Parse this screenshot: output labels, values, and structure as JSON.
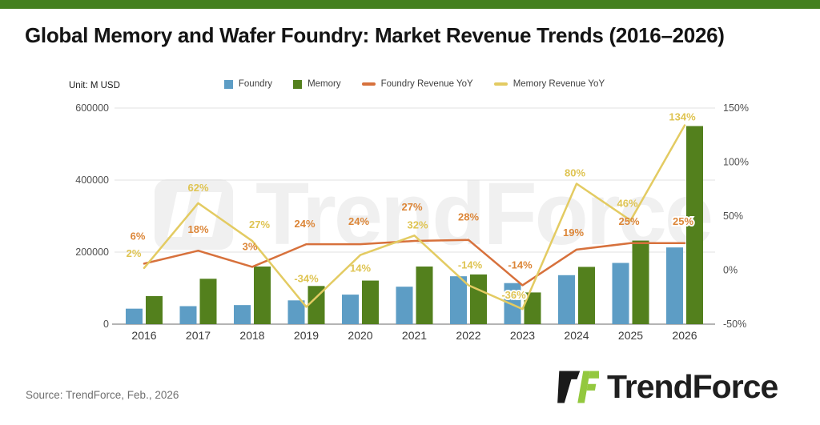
{
  "header": {
    "title": "Global Memory and Wafer Foundry: Market Revenue Trends (2016–2026)"
  },
  "chart_meta": {
    "unit_label": "Unit: M USD"
  },
  "brand": {
    "top_bar_color": "#44801f",
    "logo_green": "#93c83e",
    "logo_black": "#1a1a1a",
    "logo_text": "TrendForce"
  },
  "watermark": {
    "text": "TrendForce"
  },
  "legend": [
    {
      "label": "Foundry",
      "type": "square",
      "color": "#5d9dc5"
    },
    {
      "label": "Memory",
      "type": "square",
      "color": "#53801d"
    },
    {
      "label": "Foundry Revenue YoY",
      "type": "line",
      "color": "#d7713c"
    },
    {
      "label": "Memory Revenue YoY",
      "type": "line",
      "color": "#e3cb62"
    }
  ],
  "footer": {
    "source": "Source: TrendForce, Feb., 2026"
  },
  "chart_data": {
    "type": "combo-bar-line",
    "title": "Global Memory and Wafer Foundry: Market Revenue Trends (2016–2026)",
    "unit": "M USD",
    "grid": "horizontal",
    "legend_position": "top",
    "categories": [
      "2016",
      "2017",
      "2018",
      "2019",
      "2020",
      "2021",
      "2022",
      "2023",
      "2024",
      "2025",
      "2026"
    ],
    "left_axis": {
      "min": 0,
      "max": 600000,
      "ticks": [
        0,
        200000,
        400000,
        600000
      ],
      "tick_labels": [
        "0",
        "200000",
        "400000",
        "600000"
      ]
    },
    "right_axis": {
      "min": -50,
      "max": 150,
      "ticks": [
        -50,
        0,
        50,
        100,
        150
      ],
      "tick_labels": [
        "-50%",
        "0%",
        "50%",
        "100%",
        "150%"
      ]
    },
    "series": [
      {
        "name": "Foundry",
        "kind": "bar",
        "axis": "left",
        "color": "#5d9dc5",
        "values": [
          43000,
          50000,
          53000,
          66000,
          82000,
          104000,
          133000,
          114000,
          136000,
          170000,
          213000
        ]
      },
      {
        "name": "Memory",
        "kind": "bar",
        "axis": "left",
        "color": "#53801d",
        "values": [
          78000,
          126000,
          160000,
          106000,
          121000,
          160000,
          138000,
          88000,
          159000,
          232000,
          550000
        ]
      },
      {
        "name": "Foundry Revenue YoY",
        "kind": "line",
        "axis": "right",
        "color": "#d7713c",
        "label_color": "#dc8638",
        "values": [
          6,
          18,
          3,
          24,
          24,
          27,
          28,
          -14,
          19,
          25,
          25
        ],
        "labels": [
          "6%",
          "18%",
          "3%",
          "24%",
          "24%",
          "27%",
          "28%",
          "-14%",
          "19%",
          "25%",
          "25%"
        ],
        "label_offsets": [
          [
            -8,
            -30
          ],
          [
            0,
            -22
          ],
          [
            -3,
            -21
          ],
          [
            -2,
            -21
          ],
          [
            -2,
            -24
          ],
          [
            -3,
            -38
          ],
          [
            0,
            -24
          ],
          [
            -3,
            -21
          ],
          [
            -4,
            -17
          ],
          [
            -2,
            -23
          ],
          [
            -2,
            -23
          ]
        ],
        "label_halo": [
          false,
          false,
          false,
          false,
          false,
          false,
          false,
          false,
          false,
          false,
          true
        ]
      },
      {
        "name": "Memory Revenue YoY",
        "kind": "line",
        "axis": "right",
        "color": "#e3cb62",
        "label_color": "#dfc452",
        "values": [
          2,
          62,
          27,
          -34,
          14,
          32,
          -14,
          -36,
          80,
          46,
          134
        ],
        "labels": [
          "2%",
          "62%",
          "27%",
          "-34%",
          "14%",
          "32%",
          "-14%",
          "-36%",
          "80%",
          "46%",
          "134%"
        ],
        "label_offsets": [
          [
            -13,
            -14
          ],
          [
            0,
            -15
          ],
          [
            9,
            -16
          ],
          [
            0,
            -31
          ],
          [
            0,
            21
          ],
          [
            4,
            -9
          ],
          [
            2,
            -21
          ],
          [
            -11,
            -13
          ],
          [
            -2,
            -9
          ],
          [
            -4,
            -17
          ],
          [
            -3,
            -6
          ]
        ],
        "label_halo": [
          false,
          false,
          false,
          false,
          false,
          false,
          false,
          true,
          false,
          false,
          true
        ]
      }
    ]
  }
}
